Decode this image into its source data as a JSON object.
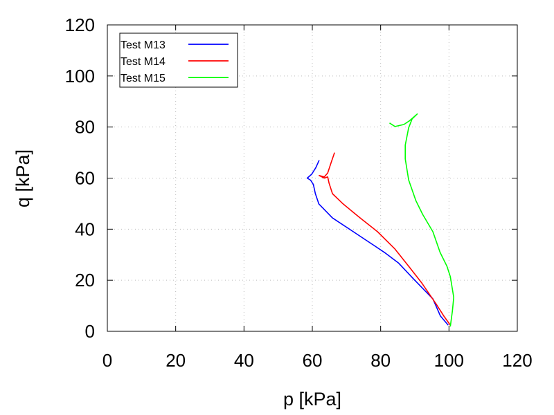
{
  "chart_data": {
    "type": "line",
    "title": "",
    "xlabel": "p [kPa]",
    "ylabel": "q [kPa]",
    "xlim": [
      0,
      120
    ],
    "ylim": [
      0,
      120
    ],
    "xticks": [
      0,
      20,
      40,
      60,
      80,
      100,
      120
    ],
    "yticks": [
      0,
      20,
      40,
      60,
      80,
      100,
      120
    ],
    "xtick_labels": [
      "0",
      "20",
      "40",
      "60",
      "80",
      "100",
      "120"
    ],
    "ytick_labels": [
      "0",
      "20",
      "40",
      "60",
      "80",
      "100",
      "120"
    ],
    "grid": true,
    "legend_position": "top-left",
    "series": [
      {
        "name": "Test M13",
        "color": "#0000ff",
        "points": [
          [
            99.8,
            2.4
          ],
          [
            97.5,
            6
          ],
          [
            95.3,
            12.7
          ],
          [
            90,
            20
          ],
          [
            85.2,
            26.8
          ],
          [
            81.1,
            30.9
          ],
          [
            78.1,
            33.6
          ],
          [
            72,
            39
          ],
          [
            65.9,
            44.4
          ],
          [
            61.9,
            49.9
          ],
          [
            60.9,
            53.9
          ],
          [
            60.3,
            57.5
          ],
          [
            59.5,
            59.2
          ],
          [
            58.5,
            60
          ],
          [
            59.8,
            61.5
          ],
          [
            61,
            64
          ],
          [
            62,
            67
          ]
        ]
      },
      {
        "name": "Test M14",
        "color": "#ff0000",
        "points": [
          [
            100.4,
            2.4
          ],
          [
            98.5,
            6
          ],
          [
            96.3,
            10.6
          ],
          [
            92,
            19
          ],
          [
            88.2,
            25.5
          ],
          [
            84.2,
            32.2
          ],
          [
            79.1,
            39
          ],
          [
            74,
            44.4
          ],
          [
            69,
            49.9
          ],
          [
            65.9,
            53.9
          ],
          [
            64.9,
            58
          ],
          [
            64.5,
            60.5
          ],
          [
            63.5,
            60
          ],
          [
            62,
            61
          ],
          [
            63.5,
            60.5
          ],
          [
            64.5,
            62
          ],
          [
            65.5,
            66
          ],
          [
            66.5,
            70
          ]
        ]
      },
      {
        "name": "Test M15",
        "color": "#00ff00",
        "points": [
          [
            100.4,
            1.9
          ],
          [
            101,
            8
          ],
          [
            101.4,
            13.3
          ],
          [
            100.4,
            21.4
          ],
          [
            99.4,
            25.5
          ],
          [
            97.4,
            30.9
          ],
          [
            95.3,
            39
          ],
          [
            92.3,
            45.8
          ],
          [
            90.3,
            51.2
          ],
          [
            88.2,
            59.3
          ],
          [
            87.2,
            67.5
          ],
          [
            87.2,
            72.9
          ],
          [
            88.2,
            79.7
          ],
          [
            89.2,
            83.2
          ],
          [
            90.7,
            85.1
          ],
          [
            88.5,
            82.5
          ],
          [
            86.8,
            81
          ],
          [
            84.2,
            80.2
          ],
          [
            82.6,
            81.6
          ]
        ]
      }
    ]
  }
}
